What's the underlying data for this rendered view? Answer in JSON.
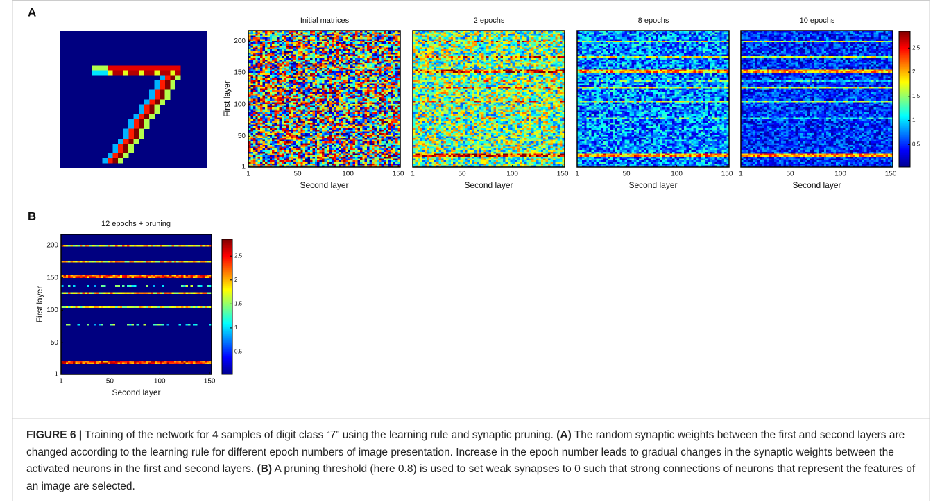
{
  "panel_a": {
    "label": "A",
    "titles": [
      "Initial matrices",
      "2 epochs",
      "8 epochs",
      "10 epochs"
    ]
  },
  "panel_b": {
    "label": "B",
    "title": "12 epochs + pruning"
  },
  "axes": {
    "x_label": "Second layer",
    "y_label": "First layer",
    "xlim": [
      1,
      152
    ],
    "xticks": [
      1,
      50,
      100,
      150
    ],
    "ylim": [
      1,
      217
    ],
    "yticks": [
      1,
      50,
      100,
      150,
      200
    ]
  },
  "colorbar": {
    "lim": [
      0.03,
      2.85
    ],
    "ticks": [
      0.5,
      1,
      1.5,
      2,
      2.5
    ]
  },
  "caption": {
    "label": "FIGURE 6 |",
    "text": " Training of the network for 4 samples of digit class “7” using the learning rule and synaptic pruning. ",
    "a_label": "(A)",
    "a_text": " The random synaptic weights between the first and second layers are changed according to the learning rule for different epoch numbers of image presentation. Increase in the epoch number leads to gradual changes in the synaptic weights between the activated neurons in the first and second layers. ",
    "b_label": "(B)",
    "b_text": " A pruning threshold (here 0.8) is used to set weak synapses to 0 such that strong connections of neurons that represent the features of an image are selected."
  }
}
